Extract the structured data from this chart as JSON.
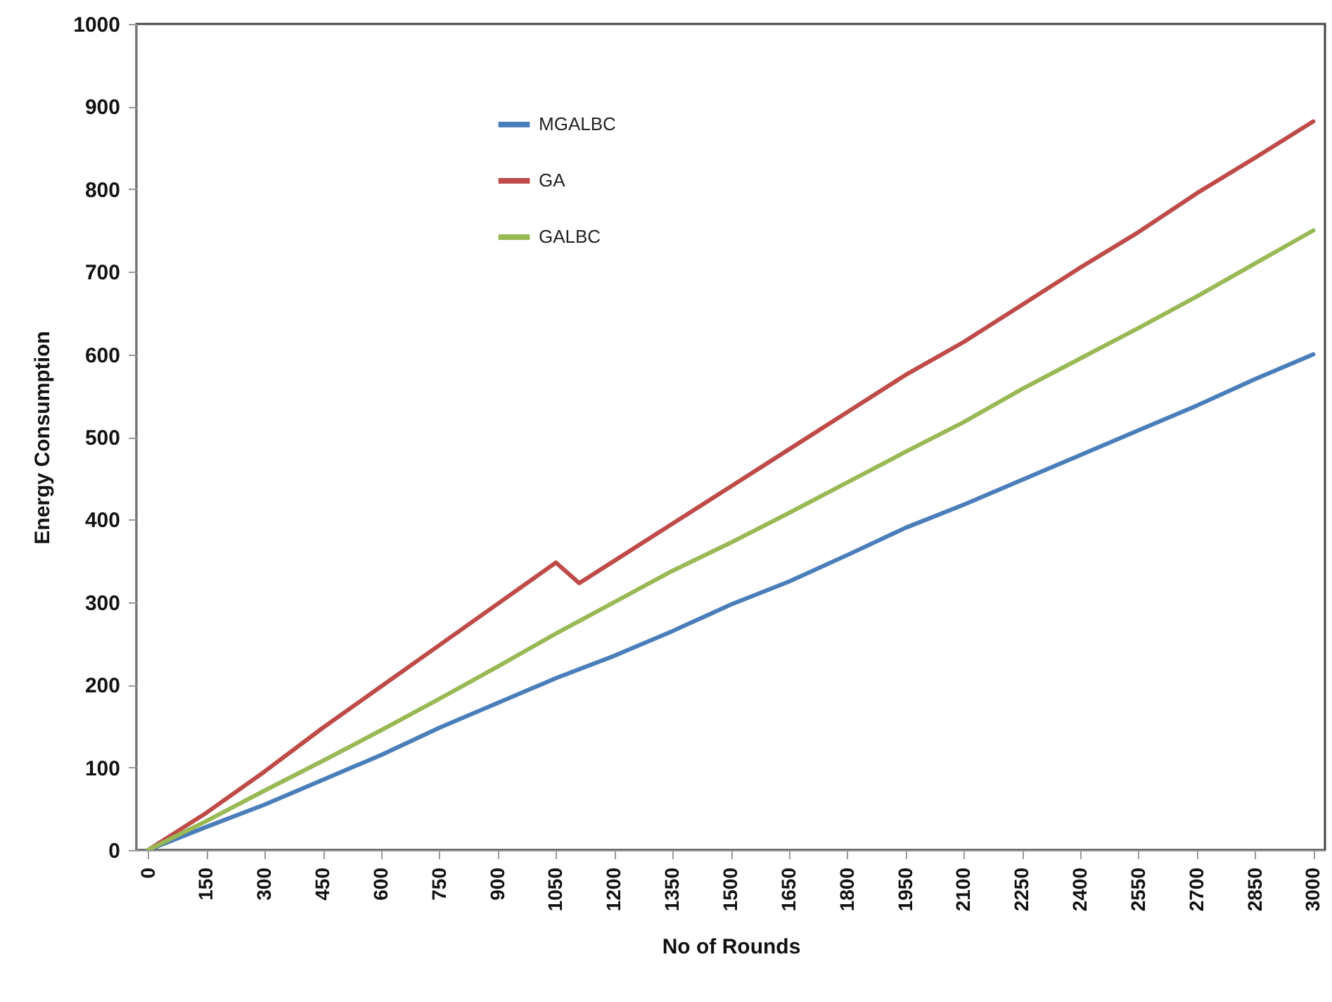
{
  "chart_data": {
    "type": "line",
    "xlabel": "No of Rounds",
    "ylabel": "Energy Consumption",
    "xlim": [
      -30,
      3030
    ],
    "xticks": [
      0,
      150,
      300,
      450,
      600,
      750,
      900,
      1050,
      1200,
      1350,
      1500,
      1650,
      1800,
      1950,
      2100,
      2250,
      2400,
      2550,
      2700,
      2850,
      3000
    ],
    "ylim": [
      0,
      1000
    ],
    "yticks": [
      0,
      100,
      200,
      300,
      400,
      500,
      600,
      700,
      800,
      900,
      1000
    ],
    "grid": false,
    "legend": "top left",
    "marker": "none",
    "line_style": "solid",
    "series": [
      {
        "name": "MGALBC",
        "color": "#4a7ebb",
        "x": [
          0,
          150,
          300,
          450,
          600,
          750,
          900,
          1050,
          1200,
          1350,
          1500,
          1650,
          1800,
          1950,
          2100,
          2250,
          2400,
          2550,
          2700,
          2850,
          3000
        ],
        "values": [
          0,
          28,
          55,
          85,
          115,
          148,
          178,
          208,
          235,
          265,
          297,
          325,
          357,
          390,
          418,
          448,
          478,
          508,
          538,
          570,
          600
        ]
      },
      {
        "name": "GA",
        "color": "#be4b48",
        "x": [
          0,
          150,
          300,
          450,
          600,
          750,
          900,
          1050,
          1110,
          1200,
          1350,
          1500,
          1650,
          1800,
          1950,
          2100,
          2250,
          2400,
          2550,
          2700,
          2850,
          3000
        ],
        "values": [
          0,
          45,
          95,
          148,
          198,
          248,
          298,
          348,
          323,
          350,
          395,
          440,
          485,
          530,
          575,
          615,
          660,
          705,
          748,
          795,
          838,
          882
        ]
      },
      {
        "name": "GALBC",
        "color": "#98b954",
        "x": [
          0,
          150,
          300,
          450,
          600,
          750,
          900,
          1050,
          1200,
          1350,
          1500,
          1650,
          1800,
          1950,
          2100,
          2250,
          2400,
          2550,
          2700,
          2850,
          3000
        ],
        "values": [
          0,
          35,
          72,
          108,
          145,
          183,
          222,
          262,
          300,
          338,
          372,
          408,
          445,
          482,
          518,
          558,
          595,
          632,
          670,
          710,
          750
        ]
      }
    ]
  }
}
